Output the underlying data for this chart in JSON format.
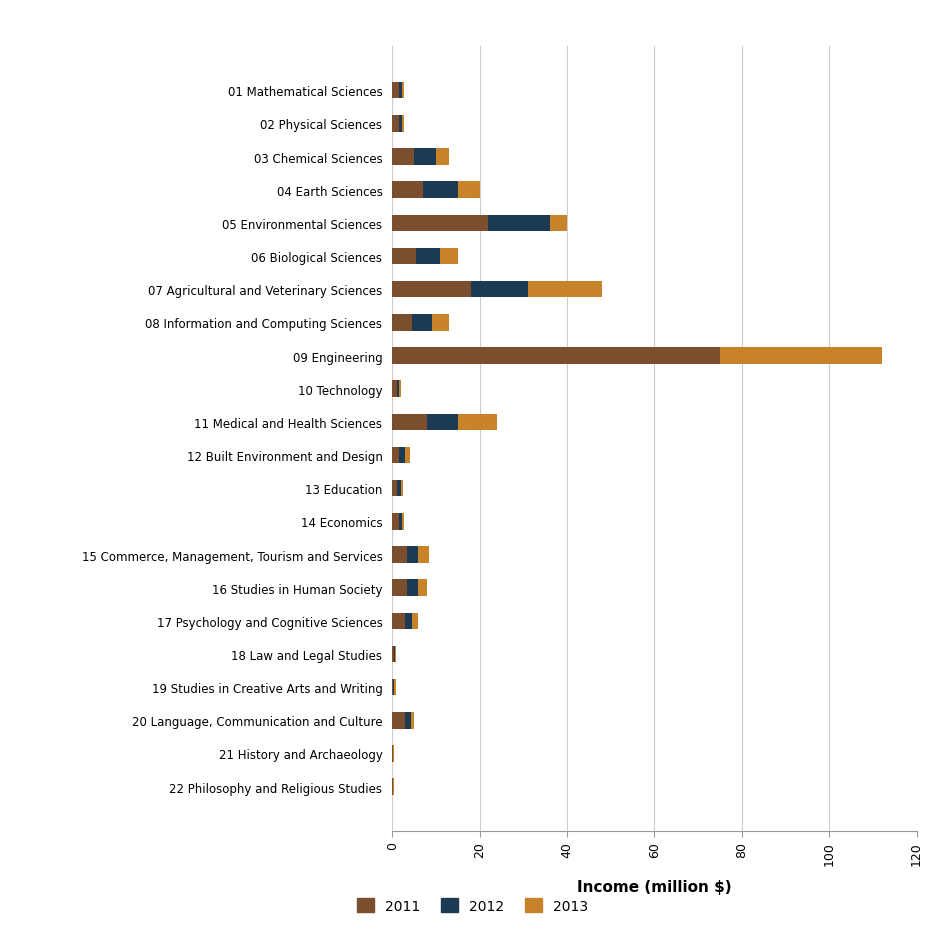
{
  "categories": [
    "01 Mathematical Sciences",
    "02 Physical Sciences",
    "03 Chemical Sciences",
    "04 Earth Sciences",
    "05 Environmental Sciences",
    "06 Biological Sciences",
    "07 Agricultural and Veterinary Sciences",
    "08 Information and Computing Sciences",
    "09 Engineering",
    "10 Technology",
    "11 Medical and Health Sciences",
    "12 Built Environment and Design",
    "13 Education",
    "14 Economics",
    "15 Commerce, Management, Tourism and Services",
    "16 Studies in Human Society",
    "17 Psychology and Cognitive Sciences",
    "18 Law and Legal Studies",
    "19 Studies in Creative Arts and Writing",
    "20 Language, Communication and Culture",
    "21 History and Archaeology",
    "22 Philosophy and Religious Studies"
  ],
  "values_2011": [
    1.5,
    1.5,
    5.0,
    7.0,
    22.0,
    5.5,
    18.0,
    4.5,
    75.0,
    1.0,
    8.0,
    1.5,
    1.2,
    1.5,
    3.5,
    3.5,
    3.0,
    0.5,
    0.3,
    3.0,
    0.2,
    0.2
  ],
  "values_2012": [
    0.8,
    0.8,
    5.0,
    8.0,
    14.0,
    5.5,
    13.0,
    4.5,
    0.0,
    0.5,
    7.0,
    1.5,
    0.8,
    0.8,
    2.5,
    2.5,
    1.5,
    0.2,
    0.1,
    1.2,
    0.1,
    0.1
  ],
  "values_2013": [
    0.5,
    0.5,
    3.0,
    5.0,
    4.0,
    4.0,
    17.0,
    4.0,
    37.0,
    0.5,
    9.0,
    1.0,
    0.5,
    0.5,
    2.5,
    2.0,
    1.5,
    0.2,
    0.5,
    0.8,
    0.1,
    0.1
  ],
  "color_2011": "#7B4F2E",
  "color_2012": "#1C3A52",
  "color_2013": "#C8822A",
  "xlabel": "Income (million $)",
  "xlim": [
    0,
    120
  ],
  "xticks": [
    0,
    20,
    40,
    60,
    80,
    100,
    120
  ],
  "legend_labels": [
    "2011",
    "2012",
    "2013"
  ],
  "background_color": "#ffffff",
  "grid_color": "#cccccc"
}
